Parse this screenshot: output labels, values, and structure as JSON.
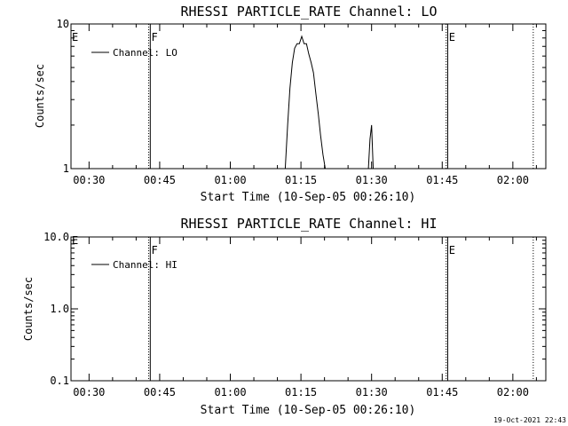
{
  "chart_data": [
    {
      "type": "line",
      "title": "RHESSI PARTICLE_RATE Channel: LO",
      "xlabel": "Start Time (10-Sep-05 00:26:10)",
      "ylabel": "Counts/sec",
      "ylog": true,
      "ylim": [
        1,
        10
      ],
      "xlim": [
        "00:26:10",
        "02:07:00"
      ],
      "yticks": [
        {
          "value": 1,
          "label": "1"
        },
        {
          "value": 10,
          "label": "10"
        }
      ],
      "xticks": [
        "00:30",
        "00:45",
        "01:00",
        "01:15",
        "01:30",
        "01:45",
        "02:00"
      ],
      "legend": {
        "position": "top-left",
        "label": "Channel: LO"
      },
      "series": [
        {
          "name": "Channel: LO",
          "x": [
            "01:11:40",
            "01:12:10",
            "01:12:40",
            "01:13:10",
            "01:13:40",
            "01:14:10",
            "01:14:40",
            "01:15:10",
            "01:15:40",
            "01:16:10",
            "01:16:40",
            "01:17:10",
            "01:17:40",
            "01:18:10",
            "01:18:40",
            "01:19:10",
            "01:19:40",
            "01:20:10",
            "01:29:20",
            "01:29:40",
            "01:30:00",
            "01:30:20"
          ],
          "y": [
            1.0,
            2.0,
            3.6,
            5.4,
            6.8,
            7.3,
            7.3,
            8.2,
            7.3,
            7.3,
            6.2,
            5.4,
            4.6,
            3.3,
            2.4,
            1.7,
            1.25,
            1.0,
            1.0,
            1.6,
            2.0,
            1.0
          ]
        }
      ],
      "markers": [
        {
          "time": "00:42:40",
          "label": "F",
          "style": "dotted"
        },
        {
          "time": "00:43:00",
          "label": "",
          "style": "solid"
        },
        {
          "time": "01:45:50",
          "label": "E",
          "style": "dotted"
        },
        {
          "time": "01:46:10",
          "label": "",
          "style": "solid"
        },
        {
          "time": "02:04:20",
          "label": "",
          "style": "dotted"
        }
      ],
      "left_marker_label": "E"
    },
    {
      "type": "line",
      "title": "RHESSI PARTICLE_RATE Channel: HI",
      "xlabel": "Start Time (10-Sep-05 00:26:10)",
      "ylabel": "Counts/sec",
      "ylog": true,
      "ylim": [
        0.1,
        10
      ],
      "xlim": [
        "00:26:10",
        "02:07:00"
      ],
      "yticks": [
        {
          "value": 0.1,
          "label": "0.1"
        },
        {
          "value": 1,
          "label": "1.0"
        },
        {
          "value": 10,
          "label": "10.0"
        }
      ],
      "xticks": [
        "00:30",
        "00:45",
        "01:00",
        "01:15",
        "01:30",
        "01:45",
        "02:00"
      ],
      "legend": {
        "position": "top-left",
        "label": "Channel: HI"
      },
      "series": [
        {
          "name": "Channel: HI",
          "x": [],
          "y": []
        }
      ],
      "markers": [
        {
          "time": "00:42:40",
          "label": "F",
          "style": "dotted"
        },
        {
          "time": "00:43:00",
          "label": "",
          "style": "solid"
        },
        {
          "time": "01:45:50",
          "label": "E",
          "style": "dotted"
        },
        {
          "time": "01:46:10",
          "label": "",
          "style": "solid"
        },
        {
          "time": "02:04:20",
          "label": "",
          "style": "dotted"
        }
      ],
      "left_marker_label": "E"
    }
  ],
  "timestamp": "19-Oct-2021 22:43"
}
